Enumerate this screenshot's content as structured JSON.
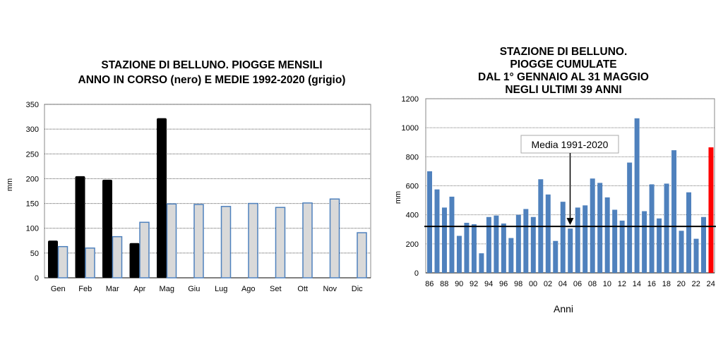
{
  "chart_data": [
    {
      "type": "bar",
      "title": [
        "STAZIONE DI BELLUNO. PIOGGE MENSILI",
        "ANNO IN CORSO (nero) E MEDIE 1992-2020 (grigio)"
      ],
      "xlabel": "",
      "ylabel": "mm",
      "ylim": [
        0,
        350
      ],
      "yticks": [
        0,
        50,
        100,
        150,
        200,
        250,
        300,
        350
      ],
      "grid": true,
      "categories": [
        "Gen",
        "Feb",
        "Mar",
        "Apr",
        "Mag",
        "Giu",
        "Lug",
        "Ago",
        "Set",
        "Ott",
        "Nov",
        "Dic"
      ],
      "series": [
        {
          "name": "Anno in corso",
          "color": "#000000",
          "values": [
            75,
            205,
            198,
            70,
            322,
            null,
            null,
            null,
            null,
            null,
            null,
            null
          ]
        },
        {
          "name": "Medie 1992-2020",
          "color": "#d9d9d9",
          "values": [
            63,
            60,
            83,
            112,
            149,
            148,
            144,
            150,
            142,
            151,
            159,
            91
          ]
        }
      ]
    },
    {
      "type": "bar",
      "title": [
        "STAZIONE DI BELLUNO.",
        "PIOGGE CUMULATE",
        "DAL 1° GENNAIO AL 31 MAGGIO",
        "NEGLI ULTIMI 39 ANNI"
      ],
      "xlabel": "Anni",
      "ylabel": "mm",
      "ylim": [
        0,
        1200
      ],
      "yticks": [
        0,
        200,
        400,
        600,
        800,
        1000,
        1200
      ],
      "grid": true,
      "categories": [
        "86",
        "87",
        "88",
        "89",
        "90",
        "91",
        "92",
        "93",
        "94",
        "95",
        "96",
        "97",
        "98",
        "99",
        "00",
        "01",
        "02",
        "03",
        "04",
        "05",
        "06",
        "07",
        "08",
        "09",
        "10",
        "11",
        "12",
        "13",
        "14",
        "15",
        "16",
        "17",
        "18",
        "19",
        "20",
        "21",
        "22",
        "23",
        "24"
      ],
      "xticklabels": [
        "86",
        "88",
        "90",
        "92",
        "94",
        "96",
        "98",
        "00",
        "02",
        "04",
        "06",
        "08",
        "10",
        "12",
        "14",
        "16",
        "18",
        "20",
        "22",
        "24"
      ],
      "values": [
        700,
        575,
        450,
        525,
        255,
        345,
        335,
        135,
        385,
        395,
        340,
        240,
        400,
        440,
        385,
        645,
        540,
        220,
        490,
        305,
        450,
        465,
        650,
        620,
        520,
        435,
        360,
        760,
        1065,
        425,
        610,
        375,
        615,
        845,
        290,
        555,
        235,
        385,
        865
      ],
      "bar_color": "#4f81bd",
      "highlight_color": "#ff0000",
      "mean_line": {
        "value": 320,
        "label": "Media 1991-2020"
      }
    }
  ]
}
